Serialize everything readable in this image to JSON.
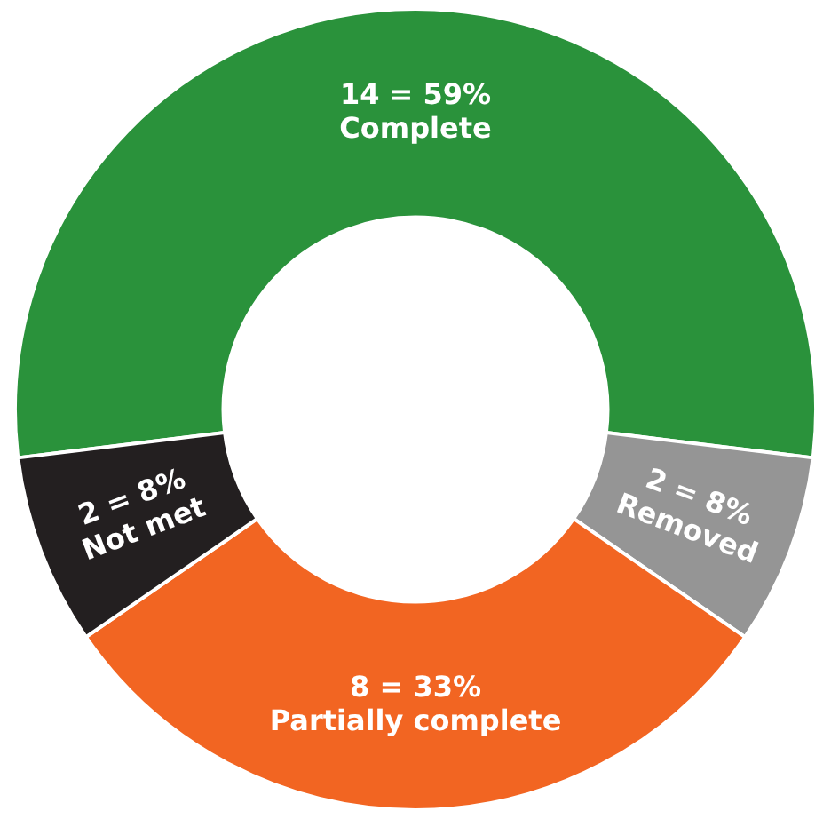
{
  "chart_data": {
    "type": "donut",
    "categories": [
      "Complete",
      "Removed",
      "Partially complete",
      "Not met"
    ],
    "values": [
      14,
      2,
      8,
      2
    ],
    "colors": [
      "#2a923b",
      "#959595",
      "#f26522",
      "#231f20"
    ],
    "value_labels": [
      "14 = 59%",
      "2 = 8%",
      "8 = 33%",
      "2 = 8%"
    ]
  }
}
